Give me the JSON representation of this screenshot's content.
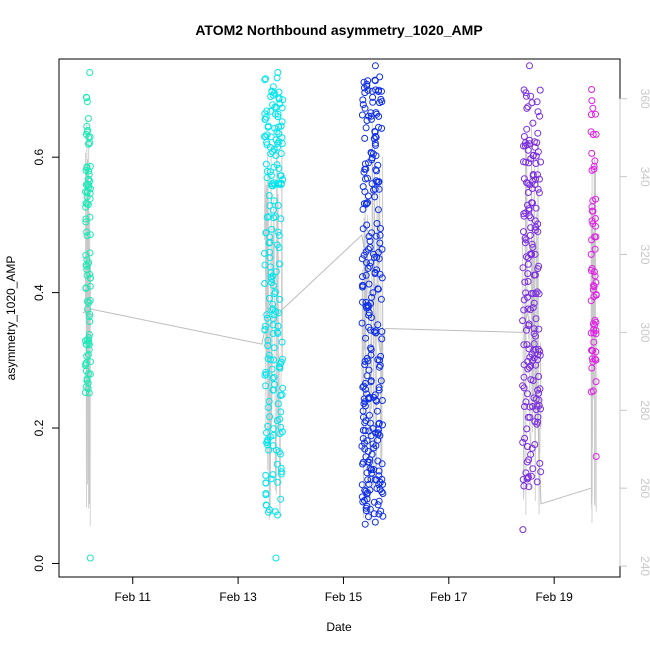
{
  "chart_data": {
    "type": "scatter",
    "title": "ATOM2 Northbound asymmetry_1020_AMP",
    "xlabel": "Date",
    "ylabel": "asymmetry_1020_AMP",
    "x_ticks": [
      "Feb 11",
      "Feb 13",
      "Feb 15",
      "Feb 17",
      "Feb 19"
    ],
    "x_tick_values": [
      11,
      13,
      15,
      17,
      19
    ],
    "x_range": [
      9.6,
      20.25
    ],
    "ylim": [
      -0.02,
      0.745
    ],
    "y_ticks": [
      "0.0",
      "0.2",
      "0.4",
      "0.6"
    ],
    "y_tick_values": [
      0.0,
      0.2,
      0.4,
      0.6
    ],
    "right_axis": {
      "ticks": [
        "240",
        "260",
        "280",
        "300",
        "320",
        "340",
        "360"
      ],
      "tick_values": [
        240,
        260,
        280,
        300,
        320,
        340,
        360
      ],
      "range": [
        237.2,
        370.2
      ],
      "color": "#c8c8c8"
    },
    "grid": false,
    "legend": "none",
    "series": [
      {
        "color": "#1de9b6",
        "x_range": [
          10.1,
          10.2
        ],
        "points_y_summary": {
          "min": 0.008,
          "max": 0.725,
          "core_min": 0.25,
          "core_max": 0.7
        }
      },
      {
        "color": "#00e5ee",
        "x_range": [
          13.5,
          13.85
        ],
        "points_y_summary": {
          "min": 0.008,
          "max": 0.725,
          "core_min": 0.07,
          "core_max": 0.72
        }
      },
      {
        "color": "#1030e6",
        "x_range": [
          15.35,
          15.75
        ],
        "points_y_summary": {
          "min": 0.058,
          "max": 0.735,
          "core_min": 0.06,
          "core_max": 0.72
        }
      },
      {
        "color": "#7b2ee0",
        "x_range": [
          18.4,
          18.75
        ],
        "points_y_summary": {
          "min": 0.05,
          "max": 0.735,
          "core_min": 0.11,
          "core_max": 0.7
        }
      },
      {
        "color": "#e020e6",
        "x_range": [
          19.7,
          19.8
        ],
        "points_y_summary": {
          "min": 0.158,
          "max": 0.7,
          "core_min": 0.23,
          "core_max": 0.7
        }
      }
    ],
    "line_series": {
      "color": "#bdbdbd",
      "axis": "right",
      "points": [
        [
          10.05,
          305
        ],
        [
          10.2,
          306
        ],
        [
          13.45,
          297
        ],
        [
          13.5,
          300
        ],
        [
          13.85,
          306
        ],
        [
          15.35,
          325
        ],
        [
          15.7,
          295
        ],
        [
          15.8,
          301
        ],
        [
          18.4,
          300
        ],
        [
          18.6,
          310
        ],
        [
          18.75,
          256
        ],
        [
          19.7,
          260
        ]
      ]
    }
  }
}
